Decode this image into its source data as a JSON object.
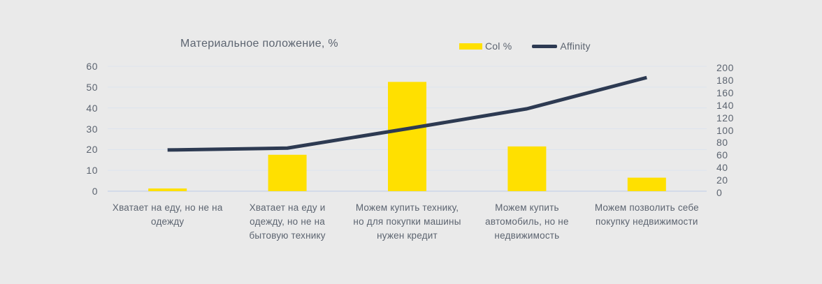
{
  "chart": {
    "title": "Материальное положение, %"
  },
  "colors": {
    "bg": "#eaeaea",
    "text": "#5c6470",
    "grid": "#dde4ef",
    "axis": "#d3dbe9",
    "bar": "#ffe000",
    "line": "#2d3a52"
  },
  "chart_data": {
    "type": "bar+line combo",
    "title": "Материальное положение, %",
    "categories": [
      "Хватает на еду, но не на одежду",
      "Хватает на еду и одежду, но не на бытовую технику",
      "Можем купить технику, но для покупки машины нужен кредит",
      "Можем купить автомобиль, но не недвижимость",
      "Можем позволить себе покупку недвижимости"
    ],
    "series": [
      {
        "name": "Col %",
        "type": "bar",
        "axis": "left",
        "color": "#ffe000",
        "values": [
          1.3,
          17.5,
          52.5,
          21.5,
          6.5
        ]
      },
      {
        "name": "Affinity",
        "type": "line",
        "axis": "right",
        "color": "#2d3a52",
        "values": [
          66,
          69,
          100,
          132,
          182
        ]
      }
    ],
    "left_axis": {
      "min": 0,
      "max": 60,
      "ticks": [
        60,
        50,
        40,
        30,
        20,
        10,
        0
      ]
    },
    "right_axis": {
      "min": 0,
      "max": 200,
      "ticks": [
        200,
        180,
        160,
        140,
        120,
        100,
        80,
        60,
        40,
        20,
        0
      ]
    },
    "grid": true,
    "legend_position": "top-right"
  }
}
